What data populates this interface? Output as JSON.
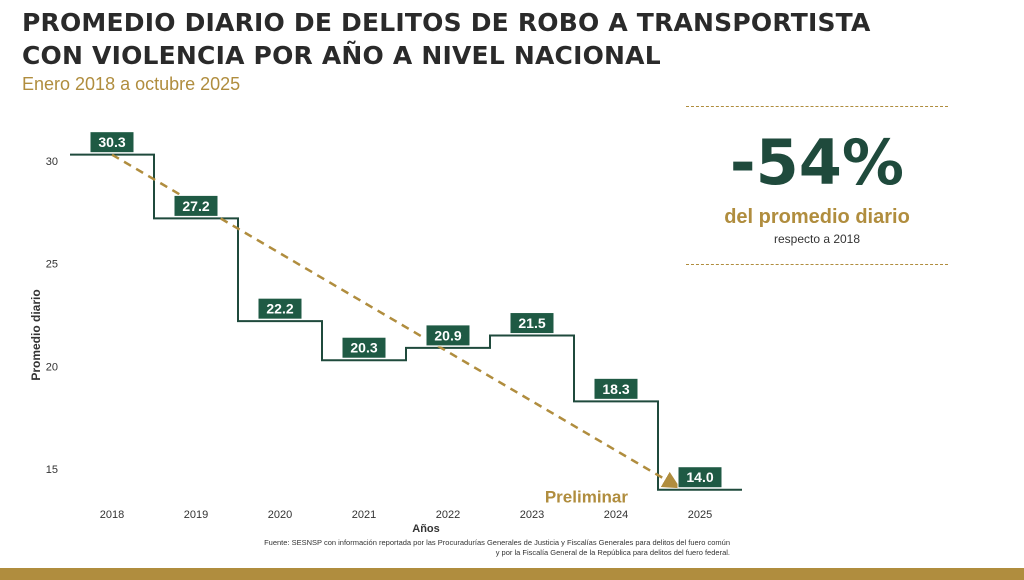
{
  "title_line1": "PROMEDIO DIARIO DE DELITOS DE ROBO A TRANSPORTISTA",
  "title_line2": "CON VIOLENCIA POR AÑO A NIVEL NACIONAL",
  "subtitle": "Enero 2018 a octubre 2025",
  "summary": {
    "value": "-54%",
    "label": "del promedio diario",
    "note": "respecto a 2018"
  },
  "trend_label": "Preliminar",
  "source_line1": "Fuente: SESNSP con información reportada por las Procuradurías Generales de Justicia y Fiscalías Generales para delitos del fuero común",
  "source_line2": "y por la Fiscalía General de la República para delitos del fuero federal.",
  "colors": {
    "line": "#1f4a3c",
    "label_bg": "#1f5a44",
    "trend": "#b08d3e"
  },
  "chart_data": {
    "type": "line",
    "step": true,
    "categories": [
      "2018",
      "2019",
      "2020",
      "2021",
      "2022",
      "2023",
      "2024",
      "2025"
    ],
    "values": [
      30.3,
      27.2,
      22.2,
      20.3,
      20.9,
      21.5,
      18.3,
      14.0
    ],
    "data_labels": [
      "30.3",
      "27.2",
      "22.2",
      "20.3",
      "20.9",
      "21.5",
      "18.3",
      "14.0"
    ],
    "xlabel": "Años",
    "ylabel": "Promedio diario",
    "y_ticks": [
      15,
      20,
      25,
      30
    ],
    "ylim": [
      13.5,
      31.5
    ],
    "trend": {
      "from": 30.3,
      "to": 14.0
    },
    "grid": false,
    "legend": "none"
  }
}
